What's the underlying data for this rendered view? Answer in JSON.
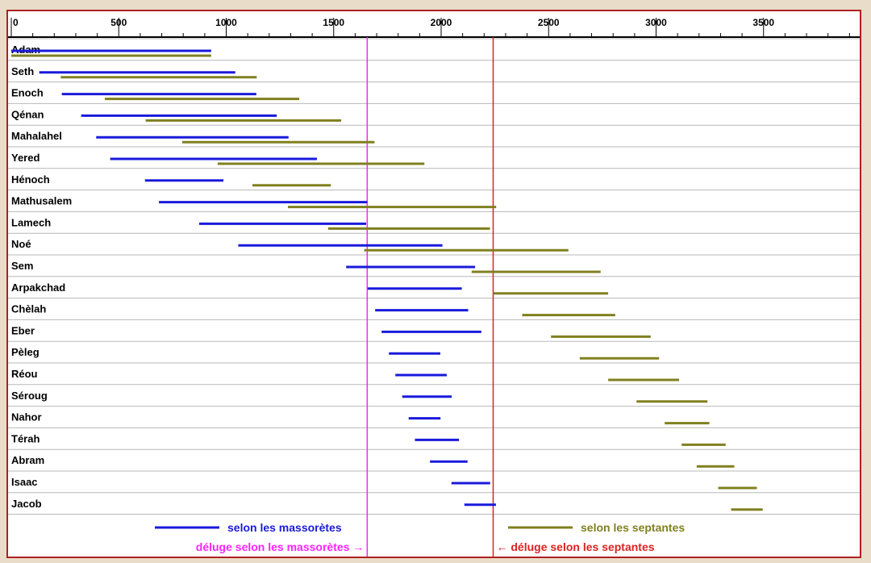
{
  "chart_data": {
    "type": "gantt",
    "x_ticks": [
      0,
      500,
      1000,
      1500,
      2000,
      2500,
      3000,
      3500
    ],
    "xlim": [
      0,
      3900
    ],
    "grid": "horizontal row separators",
    "rows": [
      "Adam",
      "Seth",
      "Enoch",
      "Qénan",
      "Mahalahel",
      "Yered",
      "Hénoch",
      "Mathusalem",
      "Lamech",
      "Noé",
      "Sem",
      "Arpakchad",
      "Chèlah",
      "Eber",
      "Pèleg",
      "Réou",
      "Séroug",
      "Nahor",
      "Térah",
      "Abram",
      "Isaac",
      "Jacob"
    ],
    "series": [
      {
        "name": "selon les massorètes",
        "color": "#1a1adc",
        "intervals": [
          [
            0,
            930
          ],
          [
            130,
            1042
          ],
          [
            235,
            1140
          ],
          [
            325,
            1235
          ],
          [
            395,
            1290
          ],
          [
            460,
            1422
          ],
          [
            622,
            987
          ],
          [
            687,
            1656
          ],
          [
            874,
            1651
          ],
          [
            1056,
            2006
          ],
          [
            1558,
            2158
          ],
          [
            1658,
            2096
          ],
          [
            1693,
            2126
          ],
          [
            1723,
            2187
          ],
          [
            1757,
            1996
          ],
          [
            1787,
            2026
          ],
          [
            1819,
            2049
          ],
          [
            1849,
            1997
          ],
          [
            1878,
            2083
          ],
          [
            1948,
            2123
          ],
          [
            2048,
            2228
          ],
          [
            2108,
            2255
          ]
        ]
      },
      {
        "name": "selon les septantes",
        "color": "#808020",
        "intervals": [
          [
            0,
            930
          ],
          [
            230,
            1142
          ],
          [
            435,
            1340
          ],
          [
            625,
            1535
          ],
          [
            795,
            1690
          ],
          [
            960,
            1922
          ],
          [
            1122,
            1487
          ],
          [
            1287,
            2256
          ],
          [
            1474,
            2227
          ],
          [
            1642,
            2592
          ],
          [
            2142,
            2742
          ],
          [
            2242,
            2777
          ],
          [
            2377,
            2810
          ],
          [
            2511,
            2975
          ],
          [
            2645,
            3014
          ],
          [
            2777,
            3107
          ],
          [
            2909,
            3239
          ],
          [
            3040,
            3248
          ],
          [
            3119,
            3324
          ],
          [
            3189,
            3364
          ],
          [
            3289,
            3469
          ],
          [
            3349,
            3496
          ]
        ]
      }
    ],
    "flood_lines": [
      {
        "label": "déluge selon les massorètes →",
        "x": 1656,
        "color": "#ff22ff"
      },
      {
        "label": "← déluge selon les septantes",
        "x": 2242,
        "color": "#dd2222"
      }
    ]
  }
}
